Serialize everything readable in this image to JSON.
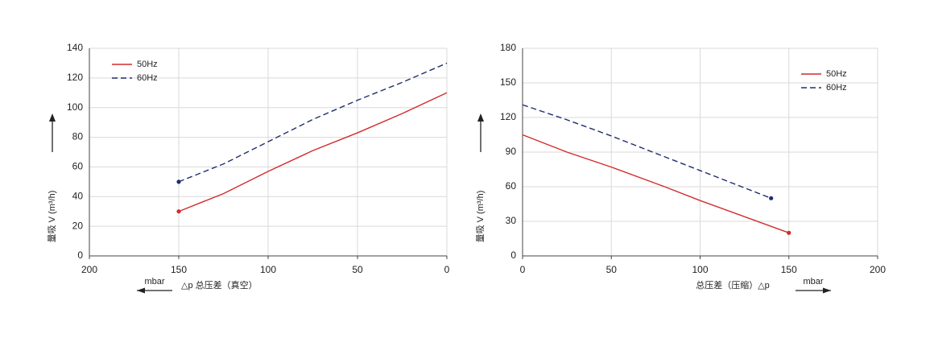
{
  "chart_data": [
    {
      "type": "line",
      "y_label": "量吸 V (m³/h)",
      "x_label": "△p 总压差（真空）",
      "unit_label": "mbar",
      "xlim": [
        200,
        0
      ],
      "ylim": [
        0,
        140
      ],
      "xticks": [
        200,
        150,
        100,
        50,
        0
      ],
      "yticks": [
        0,
        20,
        40,
        60,
        80,
        100,
        120,
        140
      ],
      "grid": true,
      "legend": "upper left",
      "series": [
        {
          "name": "50Hz",
          "color": "#d42a2a",
          "linestyle": "solid",
          "x": [
            150,
            125,
            100,
            75,
            50,
            25,
            0
          ],
          "values": [
            30,
            42,
            57,
            71,
            83,
            96,
            110
          ]
        },
        {
          "name": "60Hz",
          "color": "#1f2f6e",
          "linestyle": "dashed",
          "x": [
            150,
            125,
            100,
            75,
            50,
            25,
            0
          ],
          "values": [
            50,
            62,
            77,
            92,
            105,
            117,
            130
          ]
        }
      ]
    },
    {
      "type": "line",
      "y_label": "量吸 V (m³/h)",
      "x_label": "总压差（压缩）△p",
      "unit_label": "mbar",
      "xlim": [
        0,
        200
      ],
      "ylim": [
        0,
        180
      ],
      "xticks": [
        0,
        50,
        100,
        150,
        200
      ],
      "yticks": [
        0,
        30,
        60,
        90,
        120,
        150,
        180
      ],
      "grid": true,
      "legend": "upper right",
      "series": [
        {
          "name": "50Hz",
          "color": "#d42a2a",
          "linestyle": "solid",
          "x": [
            0,
            25,
            50,
            80,
            100,
            150
          ],
          "values": [
            105,
            90,
            77,
            60,
            48,
            20
          ]
        },
        {
          "name": "60Hz",
          "color": "#1f2f6e",
          "linestyle": "dashed",
          "x": [
            0,
            25,
            50,
            80,
            100,
            140
          ],
          "values": [
            131,
            118,
            104,
            86,
            74,
            50
          ]
        }
      ]
    }
  ]
}
